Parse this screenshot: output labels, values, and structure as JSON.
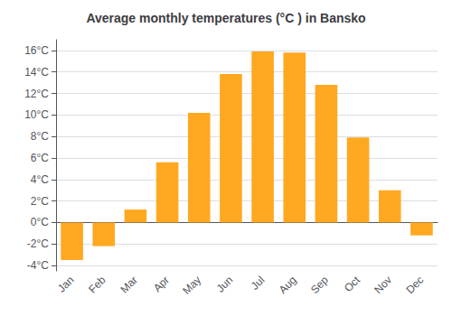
{
  "chart_data": {
    "type": "bar",
    "title": "Average monthly temperatures (°C ) in Bansko",
    "categories": [
      "Jan",
      "Feb",
      "Mar",
      "Apr",
      "May",
      "Jun",
      "Jul",
      "Aug",
      "Sep",
      "Oct",
      "Nov",
      "Dec"
    ],
    "values": [
      -3.5,
      -2.2,
      1.2,
      5.6,
      10.2,
      13.8,
      15.9,
      15.8,
      12.8,
      7.9,
      3.0,
      -1.2
    ],
    "color": "#FFA820",
    "ylim": [
      -4.5,
      17
    ],
    "yticks": [
      {
        "value": -4,
        "label": "-4°C"
      },
      {
        "value": -2,
        "label": "-2°C"
      },
      {
        "value": 0,
        "label": "0°C"
      },
      {
        "value": 2,
        "label": "2°C"
      },
      {
        "value": 4,
        "label": "4°C"
      },
      {
        "value": 6,
        "label": "6°C"
      },
      {
        "value": 8,
        "label": "8°C"
      },
      {
        "value": 10,
        "label": "10°C"
      },
      {
        "value": 12,
        "label": "12°C"
      },
      {
        "value": 14,
        "label": "14°C"
      },
      {
        "value": 16,
        "label": "16°C"
      }
    ],
    "grid": true
  }
}
